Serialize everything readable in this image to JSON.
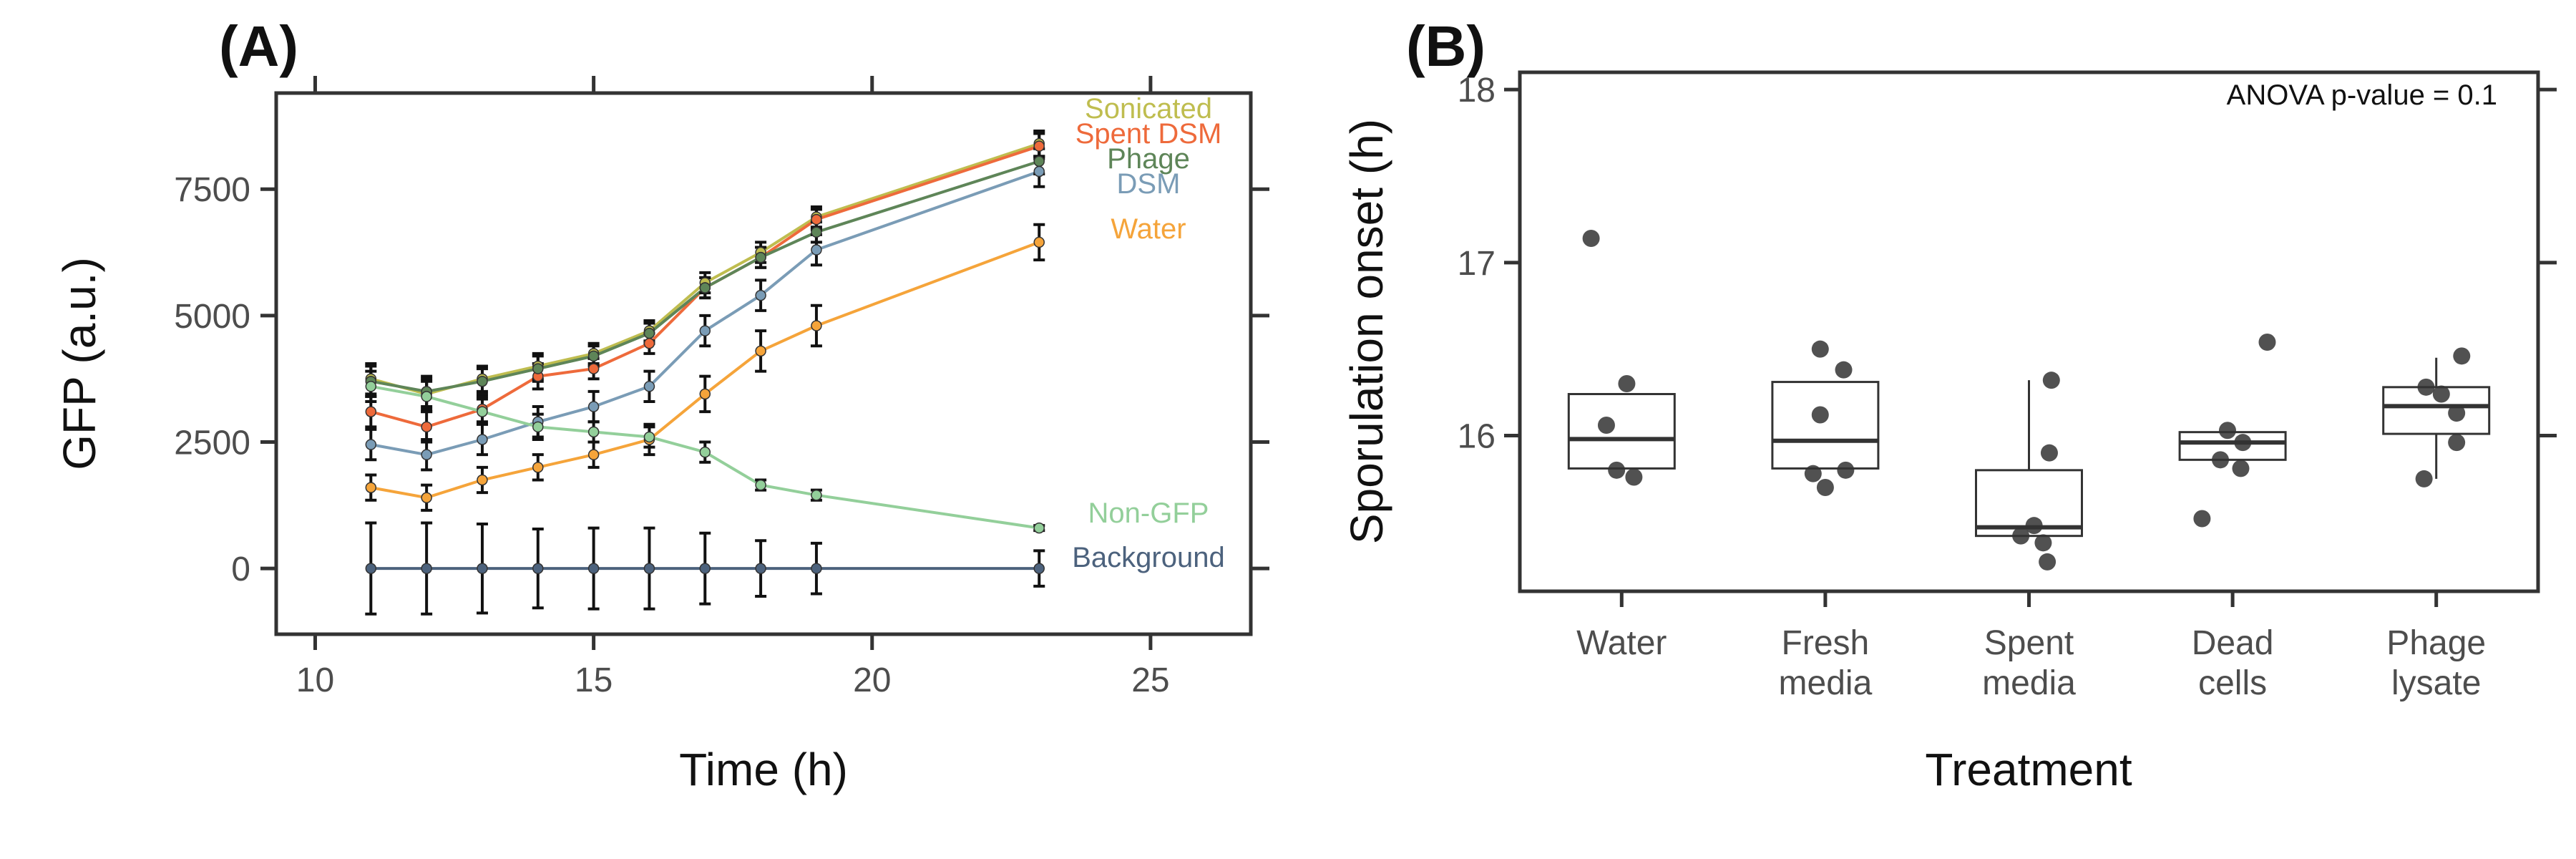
{
  "chart_data": [
    {
      "type": "line",
      "panel_label": "(A)",
      "xlabel": "Time (h)",
      "ylabel": "GFP (a.u.)",
      "xlim": [
        9.3,
        26.8
      ],
      "ylim": [
        -1300,
        9400
      ],
      "x_ticks": [
        10,
        15,
        20,
        25
      ],
      "y_ticks": [
        0,
        2500,
        5000,
        7500
      ],
      "top_ticks": [
        10,
        15,
        20,
        25
      ],
      "right_ticks": [
        0,
        2500,
        5000,
        7500
      ],
      "x": [
        11,
        12,
        13,
        14,
        15,
        16,
        17,
        18,
        19,
        23
      ],
      "legend": "direct labels at series ends",
      "series": [
        {
          "name": "Sonicated",
          "color": "#bfbd4f",
          "values": [
            3750,
            3450,
            3750,
            4000,
            4250,
            4700,
            5650,
            6250,
            6950,
            8400
          ],
          "errors": [
            300,
            300,
            250,
            250,
            200,
            200,
            200,
            200,
            200,
            250
          ]
        },
        {
          "name": "Spent DSM",
          "color": "#ee6a3b",
          "values": [
            3100,
            2800,
            3150,
            3800,
            3950,
            4450,
            5550,
            6150,
            6900,
            8350
          ],
          "errors": [
            300,
            300,
            250,
            250,
            200,
            200,
            200,
            200,
            200,
            250
          ]
        },
        {
          "name": "Phage",
          "color": "#5e8558",
          "values": [
            3700,
            3500,
            3700,
            3950,
            4200,
            4650,
            5550,
            6150,
            6650,
            8050
          ],
          "errors": [
            300,
            300,
            250,
            250,
            200,
            200,
            200,
            200,
            200,
            250
          ]
        },
        {
          "name": "DSM",
          "color": "#7a9cb6",
          "values": [
            2450,
            2250,
            2550,
            2900,
            3200,
            3600,
            4700,
            5400,
            6300,
            7850
          ],
          "errors": [
            300,
            300,
            300,
            300,
            300,
            300,
            300,
            300,
            300,
            300
          ]
        },
        {
          "name": "Water",
          "color": "#f5a43a",
          "values": [
            1600,
            1400,
            1750,
            2000,
            2250,
            2550,
            3450,
            4300,
            4800,
            6450
          ],
          "errors": [
            250,
            250,
            250,
            250,
            250,
            300,
            350,
            400,
            400,
            350
          ]
        },
        {
          "name": "Non-GFP",
          "color": "#93cf9a",
          "values": [
            3600,
            3400,
            3100,
            2800,
            2700,
            2600,
            2300,
            1650,
            1450,
            800
          ],
          "errors": [
            300,
            300,
            250,
            250,
            200,
            200,
            200,
            100,
            100,
            50
          ]
        },
        {
          "name": "Background",
          "color": "#4c627d",
          "values": [
            0,
            0,
            0,
            0,
            0,
            0,
            0,
            0,
            0,
            0
          ],
          "errors": [
            900,
            900,
            880,
            780,
            800,
            800,
            700,
            550,
            500,
            350
          ]
        }
      ]
    },
    {
      "type": "box",
      "panel_label": "(B)",
      "xlabel": "Treatment",
      "ylabel": "Sporulation onset (h)",
      "ylim": [
        15.1,
        18.1
      ],
      "y_ticks": [
        16,
        17,
        18
      ],
      "right_ticks": [
        16,
        17,
        18
      ],
      "annotation": "ANOVA p-value = 0.1",
      "categories": [
        [
          "Water"
        ],
        [
          "Fresh",
          "media"
        ],
        [
          "Spent",
          "media"
        ],
        [
          "Dead",
          "cells"
        ],
        [
          "Phage",
          "lysate"
        ]
      ],
      "boxes": [
        {
          "q1": 15.81,
          "median": 15.98,
          "q3": 16.24,
          "whisker_low": 15.81,
          "whisker_high": 16.24,
          "points": [
            [
              -0.3,
              17.14
            ],
            [
              0.05,
              16.3
            ],
            [
              -0.15,
              16.06
            ],
            [
              -0.05,
              15.8
            ],
            [
              0.12,
              15.76
            ]
          ]
        },
        {
          "q1": 15.81,
          "median": 15.97,
          "q3": 16.31,
          "whisker_low": 15.81,
          "whisker_high": 16.31,
          "points": [
            [
              -0.05,
              16.5
            ],
            [
              0.18,
              16.38
            ],
            [
              -0.05,
              16.12
            ],
            [
              -0.12,
              15.78
            ],
            [
              0.2,
              15.8
            ],
            [
              0.0,
              15.7
            ]
          ]
        },
        {
          "q1": 15.42,
          "median": 15.47,
          "q3": 15.8,
          "whisker_low": 15.42,
          "whisker_high": 16.32,
          "points": [
            [
              0.22,
              16.32
            ],
            [
              0.2,
              15.9
            ],
            [
              0.05,
              15.48
            ],
            [
              -0.08,
              15.42
            ],
            [
              0.14,
              15.38
            ],
            [
              0.18,
              15.27
            ]
          ]
        },
        {
          "q1": 15.86,
          "median": 15.96,
          "q3": 16.02,
          "whisker_low": 15.86,
          "whisker_high": 16.02,
          "points": [
            [
              0.34,
              16.54
            ],
            [
              -0.05,
              16.03
            ],
            [
              0.1,
              15.96
            ],
            [
              -0.12,
              15.86
            ],
            [
              0.08,
              15.81
            ],
            [
              -0.3,
              15.52
            ]
          ]
        },
        {
          "q1": 16.01,
          "median": 16.17,
          "q3": 16.28,
          "whisker_low": 15.75,
          "whisker_high": 16.45,
          "points": [
            [
              0.25,
              16.46
            ],
            [
              -0.1,
              16.28
            ],
            [
              0.05,
              16.24
            ],
            [
              0.2,
              16.13
            ],
            [
              0.2,
              15.96
            ],
            [
              -0.12,
              15.75
            ]
          ]
        }
      ]
    }
  ]
}
